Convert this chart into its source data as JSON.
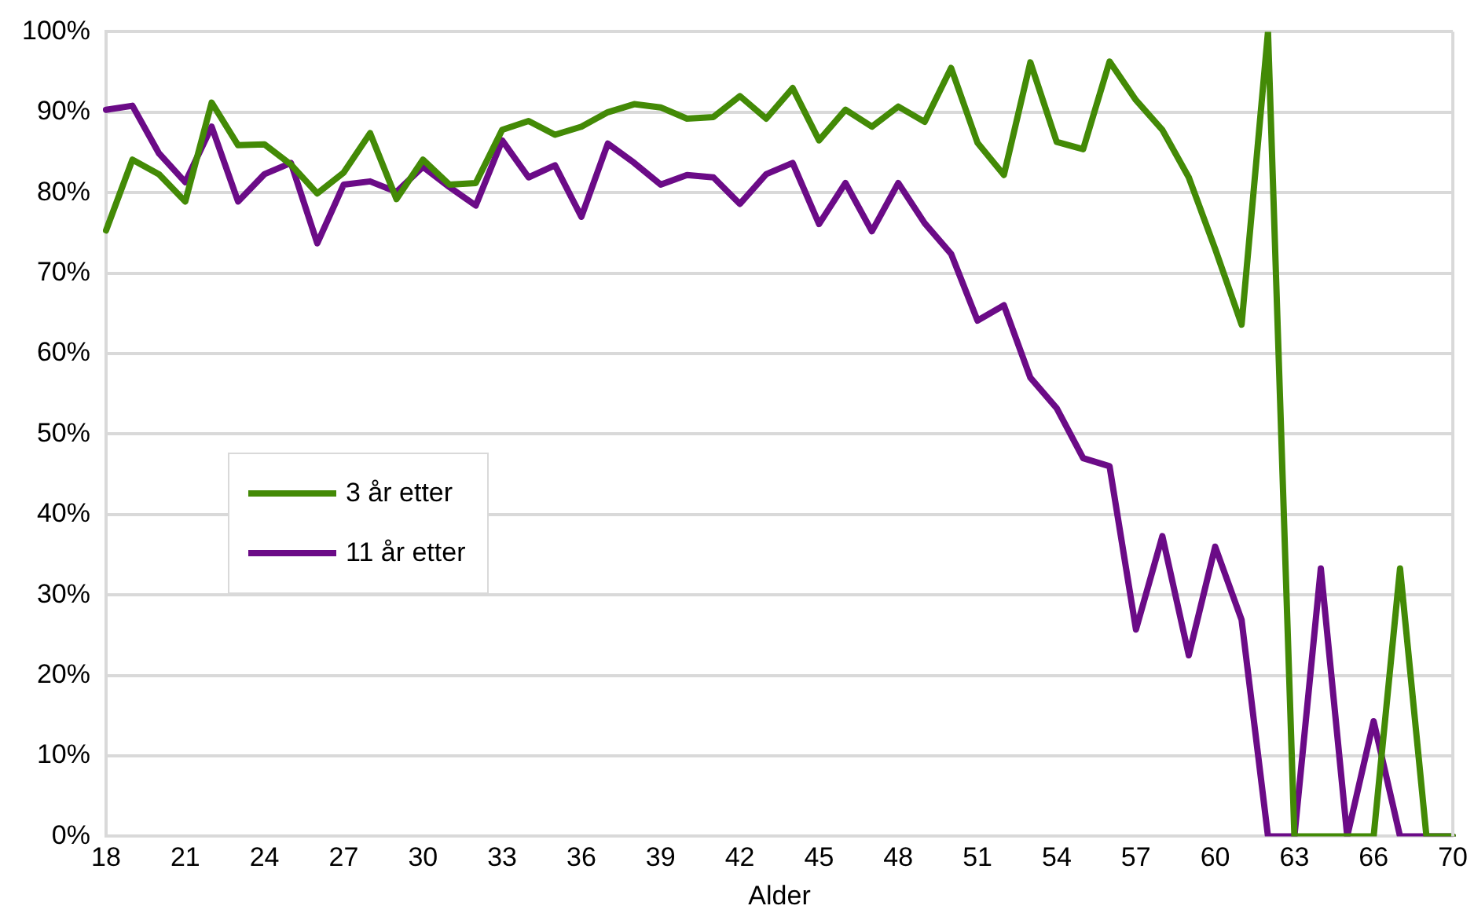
{
  "chart_data": {
    "type": "line",
    "xlabel": "Alder",
    "categories": [
      "18",
      null,
      null,
      "21",
      null,
      null,
      "24",
      null,
      null,
      "27",
      null,
      null,
      "30",
      null,
      null,
      "33",
      null,
      null,
      "36",
      null,
      null,
      "39",
      null,
      null,
      "42",
      null,
      null,
      "45",
      null,
      null,
      "48",
      null,
      null,
      "51",
      null,
      null,
      "54",
      null,
      null,
      "57",
      null,
      null,
      "60",
      null,
      null,
      "63",
      null,
      null,
      "66",
      null,
      null,
      "70"
    ],
    "series": [
      {
        "name": "3 år etter",
        "color": "#438a06",
        "values": [
          75.3,
          84.1,
          82.3,
          78.9,
          91.2,
          85.9,
          86.0,
          83.5,
          79.9,
          82.5,
          87.4,
          79.2,
          84.1,
          81.0,
          81.2,
          87.8,
          88.9,
          87.2,
          88.2,
          90.0,
          91.0,
          90.6,
          89.2,
          89.4,
          92.0,
          89.2,
          93.0,
          86.5,
          90.3,
          88.2,
          90.7,
          88.8,
          95.5,
          86.2,
          82.2,
          96.2,
          86.3,
          85.4,
          96.3,
          91.5,
          87.8,
          81.9,
          73.0,
          63.6,
          100,
          0,
          0,
          0,
          0,
          33.3,
          0,
          0
        ]
      },
      {
        "name": "11 år etter",
        "color": "#6b0b87",
        "values": [
          90.3,
          90.8,
          84.9,
          81.3,
          88.2,
          78.9,
          82.3,
          83.7,
          73.7,
          81.0,
          81.4,
          80.1,
          83.2,
          80.7,
          78.4,
          86.5,
          81.9,
          83.4,
          77.0,
          86.1,
          83.7,
          81.0,
          82.2,
          81.9,
          78.6,
          82.3,
          83.7,
          76.1,
          81.2,
          75.2,
          81.2,
          76.2,
          72.4,
          64.1,
          66.0,
          57.0,
          53.2,
          47.0,
          46.0,
          25.7,
          37.3,
          22.5,
          36.0,
          26.9,
          0,
          0,
          33.3,
          0,
          14.3,
          0,
          0,
          0
        ]
      }
    ],
    "ylim": [
      0,
      100
    ],
    "yticks": [
      {
        "value": 0,
        "label": "0%"
      },
      {
        "value": 10,
        "label": "10%"
      },
      {
        "value": 20,
        "label": "20%"
      },
      {
        "value": 30,
        "label": "30%"
      },
      {
        "value": 40,
        "label": "40%"
      },
      {
        "value": 50,
        "label": "50%"
      },
      {
        "value": 60,
        "label": "60%"
      },
      {
        "value": 70,
        "label": "70%"
      },
      {
        "value": 80,
        "label": "80%"
      },
      {
        "value": 90,
        "label": "90%"
      },
      {
        "value": 100,
        "label": "100%"
      }
    ],
    "grid": "y",
    "legend": "left",
    "marker": "none",
    "line_style": "solid"
  }
}
